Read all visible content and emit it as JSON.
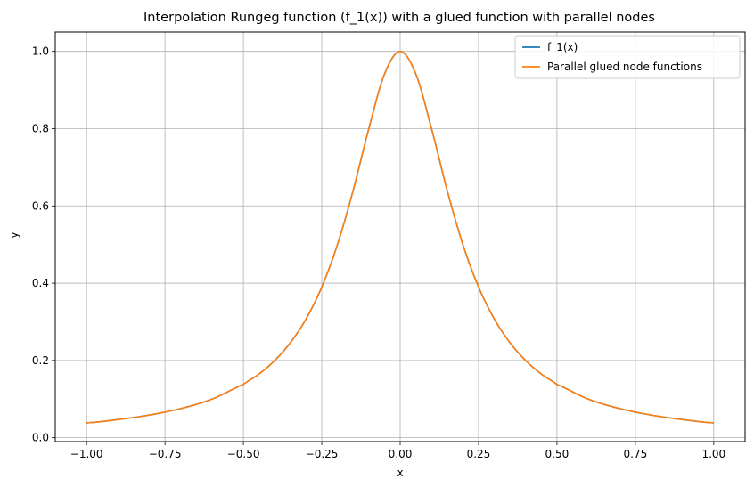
{
  "chart_data": {
    "type": "line",
    "title": "Interpolation Rungeg function (f_1(x)) with a glued function with parallel nodes",
    "xlabel": "x",
    "ylabel": "y",
    "xlim": [
      -1.1,
      1.1
    ],
    "ylim": [
      -0.01,
      1.05
    ],
    "xticks": [
      -1.0,
      -0.75,
      -0.5,
      -0.25,
      0.0,
      0.25,
      0.5,
      0.75,
      1.0
    ],
    "xtick_labels": [
      "−1.00",
      "−0.75",
      "−0.50",
      "−0.25",
      "0.00",
      "0.25",
      "0.50",
      "0.75",
      "1.00"
    ],
    "yticks": [
      0.0,
      0.2,
      0.4,
      0.6,
      0.8,
      1.0
    ],
    "ytick_labels": [
      "0.0",
      "0.2",
      "0.4",
      "0.6",
      "0.8",
      "1.0"
    ],
    "grid": true,
    "legend_position": "top-right",
    "x": [
      -1.0,
      -0.9,
      -0.8,
      -0.7,
      -0.6,
      -0.5,
      -0.45,
      -0.4,
      -0.35,
      -0.3,
      -0.25,
      -0.2,
      -0.15,
      -0.1,
      -0.05,
      0.0,
      0.05,
      0.1,
      0.15,
      0.2,
      0.25,
      0.3,
      0.35,
      0.4,
      0.45,
      0.5,
      0.6,
      0.7,
      0.8,
      0.9,
      1.0
    ],
    "series": [
      {
        "name": "f_1(x)",
        "color": "#1f77b4",
        "values": [
          0.0385,
          0.0471,
          0.0588,
          0.0755,
          0.1,
          0.1379,
          0.1649,
          0.2,
          0.2462,
          0.3077,
          0.3902,
          0.5,
          0.64,
          0.8,
          0.9412,
          1.0,
          0.9412,
          0.8,
          0.64,
          0.5,
          0.3902,
          0.3077,
          0.2462,
          0.2,
          0.1649,
          0.1379,
          0.1,
          0.0755,
          0.0588,
          0.0471,
          0.0385
        ]
      },
      {
        "name": "Parallel glued node functions",
        "color": "#ff7f0e",
        "values": [
          0.0385,
          0.0471,
          0.0588,
          0.0755,
          0.1,
          0.1379,
          0.1649,
          0.2,
          0.2462,
          0.3077,
          0.3902,
          0.5,
          0.64,
          0.8,
          0.9412,
          1.0,
          0.9412,
          0.8,
          0.64,
          0.5,
          0.3902,
          0.3077,
          0.2462,
          0.2,
          0.1649,
          0.1379,
          0.1,
          0.0755,
          0.0588,
          0.0471,
          0.0385
        ]
      }
    ]
  }
}
